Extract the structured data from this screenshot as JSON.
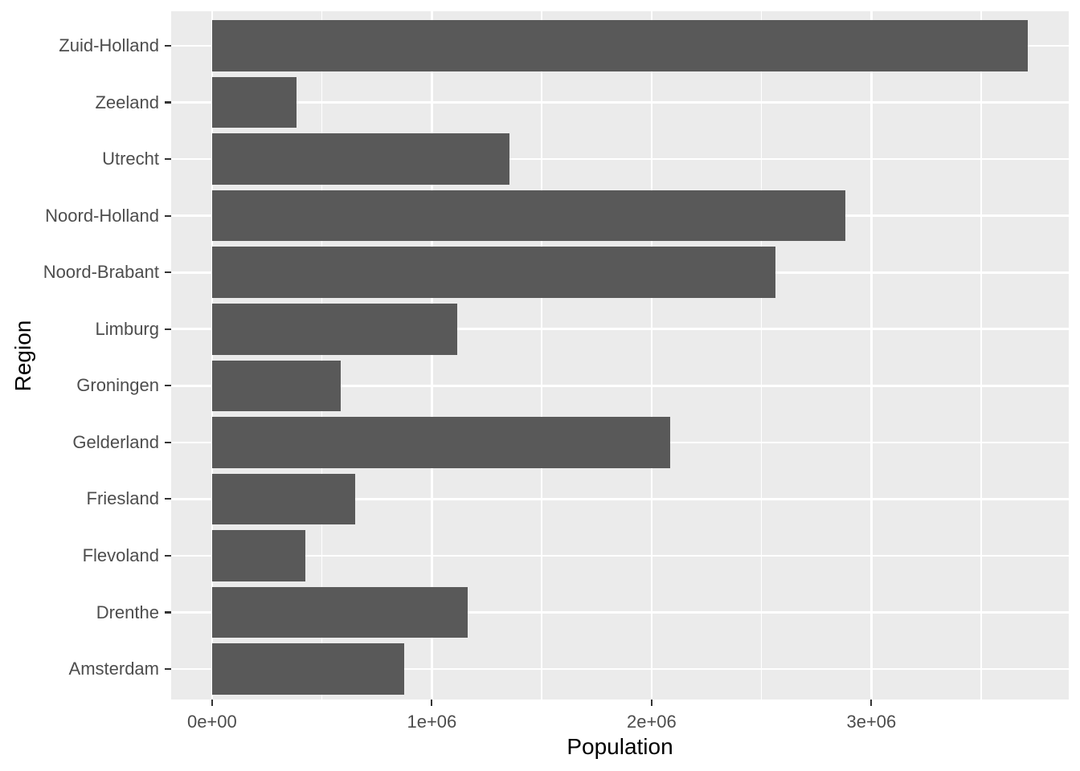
{
  "chart_data": {
    "type": "bar",
    "orientation": "horizontal",
    "title": "",
    "xlabel": "Population",
    "ylabel": "Region",
    "categories_top_to_bottom": [
      "Zuid-Holland",
      "Zeeland",
      "Utrecht",
      "Noord-Holland",
      "Noord-Brabant",
      "Limburg",
      "Groningen",
      "Gelderland",
      "Friesland",
      "Flevoland",
      "Drenthe",
      "Amsterdam"
    ],
    "values": [
      3710000,
      383500,
      1355000,
      2880000,
      2563000,
      1116000,
      586000,
      2086000,
      650000,
      423000,
      1162000,
      873000
    ],
    "x_ticks": [
      {
        "value": 0,
        "label": "0e+00"
      },
      {
        "value": 1000000,
        "label": "1e+06"
      },
      {
        "value": 2000000,
        "label": "2e+06"
      },
      {
        "value": 3000000,
        "label": "3e+06"
      }
    ],
    "x_minor_ticks": [
      500000,
      1500000,
      2500000,
      3500000
    ],
    "xlim_display": [
      -186000,
      3898000
    ],
    "legend": "none",
    "grid": "major-and-minor-vertical, major-horizontal",
    "style": {
      "bar_color": "#595959",
      "panel_bg": "#EBEBEB",
      "grid_color": "#FFFFFF",
      "axis_text_color": "#4D4D4D",
      "axis_title_color": "#000000",
      "tick_mark_color": "#333333",
      "outer_bg": "#FFFFFF"
    }
  }
}
